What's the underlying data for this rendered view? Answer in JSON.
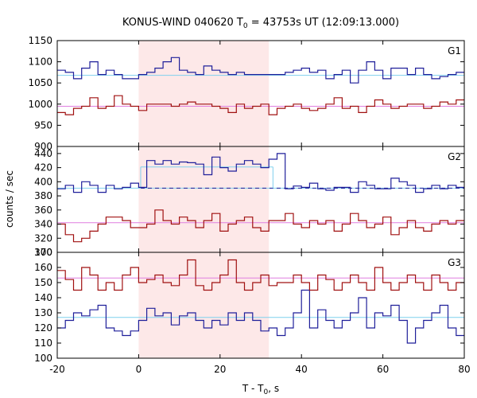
{
  "chart_data": {
    "type": "line",
    "title_main": "KONUS-WIND 040620 T",
    "title_sub": "0",
    "title_rest": " = 43753s UT (12:09:13.000)",
    "xlabel_main": "T - T",
    "xlabel_sub": "0",
    "xlabel_rest": ", s",
    "ylabel": "counts / sec",
    "xlim": [
      -20,
      80
    ],
    "xticks": [
      -20,
      0,
      20,
      40,
      60,
      80
    ],
    "highlight": {
      "x0": 0,
      "x1": 32,
      "color": "#fde8e8"
    },
    "bin_edges": [
      -20,
      -18,
      -16,
      -14,
      -12,
      -10,
      -8,
      -6,
      -4,
      -2,
      0,
      2,
      4,
      6,
      8,
      10,
      12,
      14,
      16,
      18,
      20,
      22,
      24,
      26,
      28,
      30,
      32,
      34,
      36,
      38,
      40,
      42,
      44,
      46,
      48,
      50,
      52,
      54,
      56,
      58,
      60,
      62,
      64,
      66,
      68,
      70,
      72,
      74,
      76,
      78,
      80
    ],
    "colors": {
      "blue": "#1f1f9a",
      "red": "#a01010",
      "cyan": "#7fd0ee",
      "pink": "#e07fe0"
    },
    "panels": [
      {
        "label": "G1",
        "ylim": [
          900,
          1150
        ],
        "yticks": [
          900,
          950,
          1000,
          1050,
          1100,
          1150
        ],
        "series": [
          {
            "color": "blue",
            "values": [
              1080,
              1075,
              1060,
              1085,
              1100,
              1070,
              1080,
              1070,
              1060,
              1060,
              1070,
              1075,
              1085,
              1100,
              1110,
              1080,
              1075,
              1070,
              1090,
              1080,
              1075,
              1070,
              1075,
              1070,
              1070,
              1070,
              1070,
              1070,
              1075,
              1080,
              1085,
              1075,
              1080,
              1060,
              1070,
              1080,
              1050,
              1080,
              1100,
              1080,
              1060,
              1085,
              1085,
              1070,
              1085,
              1070,
              1060,
              1065,
              1070,
              1075
            ]
          },
          {
            "color": "red",
            "values": [
              980,
              975,
              990,
              995,
              1015,
              990,
              995,
              1020,
              1000,
              995,
              985,
              1000,
              1000,
              1000,
              995,
              1000,
              1005,
              1000,
              1000,
              995,
              990,
              980,
              1000,
              990,
              995,
              1000,
              975,
              990,
              995,
              1000,
              990,
              985,
              990,
              1000,
              1015,
              990,
              995,
              980,
              995,
              1010,
              1000,
              990,
              995,
              1000,
              1000,
              990,
              995,
              1005,
              1000,
              1010
            ]
          }
        ],
        "refs": [
          {
            "color": "cyan",
            "x0": -20,
            "x1": 80,
            "value": 1068,
            "dashed": false
          },
          {
            "color": "pink",
            "x0": -20,
            "x1": 80,
            "value": 995,
            "dashed": false
          }
        ]
      },
      {
        "label": "G2",
        "ylim": [
          300,
          450
        ],
        "yticks": [
          300,
          320,
          340,
          360,
          380,
          400,
          420,
          440
        ],
        "series": [
          {
            "color": "blue",
            "values": [
              390,
              395,
              385,
              400,
              395,
              385,
              395,
              390,
              392,
              398,
              392,
              430,
              425,
              430,
              425,
              428,
              427,
              425,
              410,
              435,
              420,
              415,
              425,
              430,
              425,
              420,
              432,
              440,
              390,
              394,
              392,
              398,
              390,
              388,
              392,
              392,
              385,
              400,
              395,
              390,
              390,
              405,
              400,
              395,
              385,
              390,
              395,
              390,
              395,
              392
            ]
          },
          {
            "color": "red",
            "values": [
              340,
              325,
              315,
              320,
              330,
              340,
              350,
              350,
              345,
              335,
              335,
              340,
              360,
              345,
              340,
              350,
              345,
              335,
              345,
              355,
              330,
              340,
              345,
              350,
              335,
              330,
              345,
              345,
              355,
              340,
              335,
              345,
              340,
              345,
              330,
              340,
              355,
              345,
              335,
              340,
              350,
              325,
              335,
              345,
              335,
              330,
              340,
              345,
              340,
              345
            ]
          }
        ],
        "refs": [
          {
            "color": "cyan",
            "x0": -20,
            "x1": 80,
            "value": 391,
            "dashed": false
          },
          {
            "color": "cyan",
            "x0": 0.5,
            "x1": 33,
            "value": 421,
            "dashed": false
          },
          {
            "color": "blue",
            "x0": 0.5,
            "x1": 80,
            "value": 391,
            "dashed": true
          },
          {
            "color": "pink",
            "x0": -20,
            "x1": 80,
            "value": 342,
            "dashed": false
          }
        ]
      },
      {
        "label": "G3",
        "ylim": [
          100,
          170
        ],
        "yticks": [
          100,
          110,
          120,
          130,
          140,
          150,
          160,
          170
        ],
        "series": [
          {
            "color": "blue",
            "values": [
              120,
              125,
              130,
              128,
              132,
              135,
              120,
              118,
              115,
              118,
              125,
              133,
              128,
              130,
              122,
              128,
              130,
              125,
              120,
              125,
              122,
              130,
              125,
              130,
              125,
              118,
              120,
              115,
              120,
              130,
              145,
              120,
              132,
              125,
              120,
              125,
              130,
              140,
              120,
              130,
              128,
              135,
              125,
              110,
              120,
              125,
              130,
              135,
              120,
              115
            ]
          },
          {
            "color": "red",
            "values": [
              158,
              152,
              145,
              160,
              155,
              145,
              150,
              145,
              155,
              160,
              150,
              152,
              155,
              150,
              148,
              155,
              165,
              148,
              145,
              150,
              155,
              165,
              150,
              145,
              150,
              155,
              148,
              150,
              150,
              155,
              150,
              145,
              155,
              152,
              145,
              150,
              155,
              150,
              145,
              160,
              150,
              145,
              150,
              155,
              150,
              145,
              155,
              150,
              145,
              150
            ]
          }
        ],
        "refs": [
          {
            "color": "cyan",
            "x0": -20,
            "x1": 80,
            "value": 127,
            "dashed": false
          },
          {
            "color": "pink",
            "x0": -20,
            "x1": 80,
            "value": 153,
            "dashed": false
          }
        ]
      }
    ]
  }
}
